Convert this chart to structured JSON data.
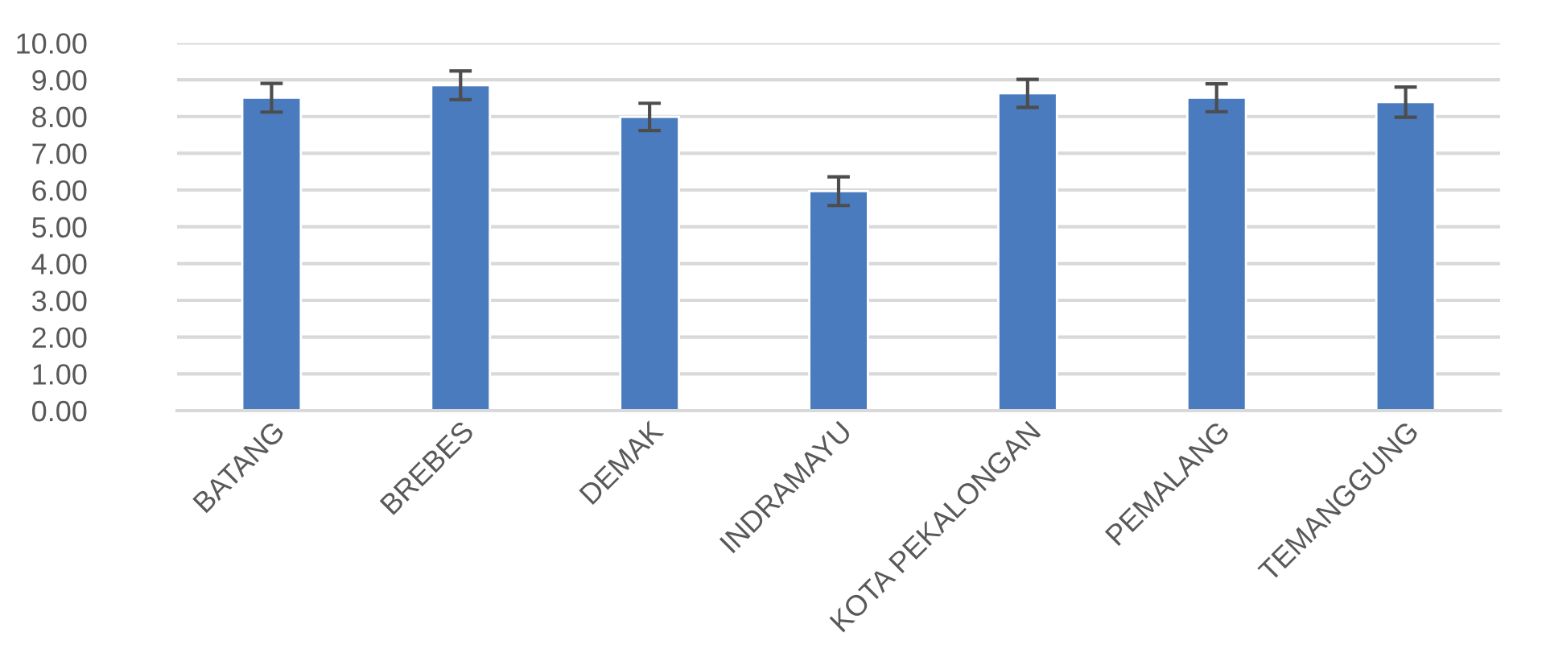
{
  "chart_data": {
    "type": "bar",
    "categories": [
      "BATANG",
      "BREBES",
      "DEMAK",
      "INDRAMAYU",
      "KOTA PEKALONGAN",
      "PEMALANG",
      "TEMANGGUNG"
    ],
    "values": [
      8.51,
      8.85,
      7.99,
      5.97,
      8.63,
      8.51,
      8.39
    ],
    "errors": [
      0.39,
      0.39,
      0.37,
      0.39,
      0.38,
      0.38,
      0.41
    ],
    "color": "#4a7bbf",
    "ylim": [
      0,
      10
    ],
    "yticks": [
      {
        "value": 0,
        "label": "0.00"
      },
      {
        "value": 1,
        "label": "1.00"
      },
      {
        "value": 2,
        "label": "2.00"
      },
      {
        "value": 3,
        "label": "3.00"
      },
      {
        "value": 4,
        "label": "4.00"
      },
      {
        "value": 5,
        "label": "5.00"
      },
      {
        "value": 6,
        "label": "6.00"
      },
      {
        "value": 7,
        "label": "7.00"
      },
      {
        "value": 8,
        "label": "8.00"
      },
      {
        "value": 9,
        "label": "9.00"
      },
      {
        "value": 10,
        "label": "10.00"
      }
    ],
    "grid": "y"
  }
}
